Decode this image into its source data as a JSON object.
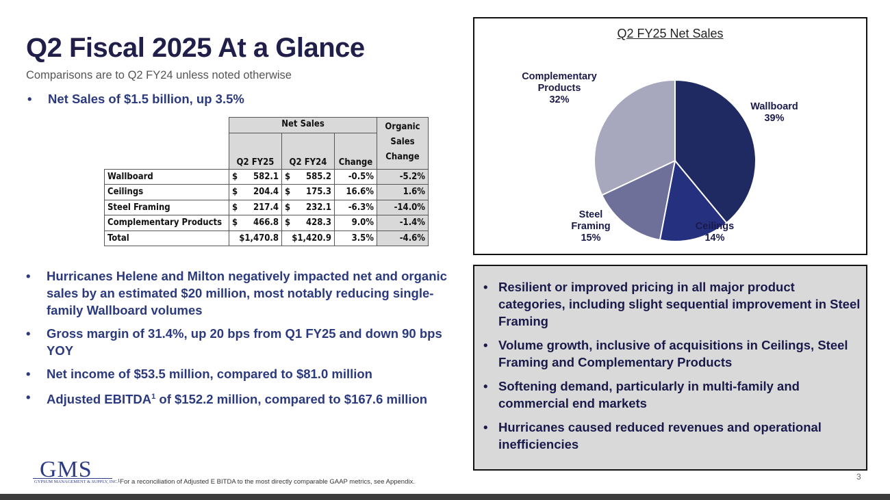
{
  "slide": {
    "title": "Q2 Fiscal 2025 At a Glance",
    "subtitle": "Comparisons are to Q2 FY24 unless noted otherwise",
    "bullet_dot": "•",
    "top_bullet": "Net Sales of $1.5 billion, up 3.5%",
    "left_bullets": [
      "Hurricanes Helene and Milton negatively impacted net and organic sales by an estimated $20 million, most notably reducing single-family Wallboard volumes",
      "Gross margin of 31.4%, up 20 bps from Q1 FY25 and down 90 bps YOY",
      "Net income of $53.5 million, compared to $81.0 million"
    ],
    "ebitda_bullet": {
      "prefix": "Adjusted EBITDA",
      "sup": "1",
      "suffix": " of $152.2 million, compared to $167.6 million"
    },
    "footnote": "¹For a reconciliation of Adjusted E BITDA to the most directly comparable GAAP metrics, see Appendix.",
    "page_number": "3"
  },
  "table": {
    "group_header": "Net Sales",
    "organic_header": "Organic Sales Change",
    "columns": [
      "Q2 FY25",
      "Q2 FY24",
      "Change"
    ],
    "currency": "$",
    "rows": [
      {
        "label": "Wallboard",
        "q2fy25": "582.1",
        "q2fy24": "585.2",
        "change": "-0.5%",
        "organic": "-5.2%"
      },
      {
        "label": "Ceilings",
        "q2fy25": "204.4",
        "q2fy24": "175.3",
        "change": "16.6%",
        "organic": "1.6%"
      },
      {
        "label": "Steel Framing",
        "q2fy25": "217.4",
        "q2fy24": "232.1",
        "change": "-6.3%",
        "organic": "-14.0%"
      },
      {
        "label": "Complementary Products",
        "q2fy25": "466.8",
        "q2fy24": "428.3",
        "change": "9.0%",
        "organic": "-1.4%"
      }
    ],
    "total": {
      "label": "Total",
      "q2fy25": "$1,470.8",
      "q2fy24": "$1,420.9",
      "change": "3.5%",
      "organic": "-4.6%"
    }
  },
  "chart_data": {
    "type": "pie",
    "title": "Q2 FY25 Net Sales",
    "slices": [
      {
        "label": "Wallboard",
        "value": 39,
        "display": "39%",
        "color": "#1f2a63"
      },
      {
        "label": "Ceilings",
        "value": 14,
        "display": "14%",
        "color": "#25307f"
      },
      {
        "label": "Steel Framing",
        "value": 15,
        "display": "15%",
        "color": "#6e7099"
      },
      {
        "label": "Complementary Products",
        "value": 32,
        "display": "32%",
        "color": "#a7a8be"
      }
    ]
  },
  "callout": {
    "bullets": [
      "Resilient or improved pricing in all major product categories, including slight sequential improvement in Steel Framing",
      "Volume growth, inclusive of acquisitions in Ceilings, Steel Framing and Complementary Products",
      "Softening demand, particularly in multi-family and commercial end markets",
      "Hurricanes caused reduced revenues and operational inefficiencies"
    ]
  },
  "logo": {
    "text": "GMS",
    "subtext": "GYPSUM MANAGEMENT & SUPPLY, INC."
  }
}
